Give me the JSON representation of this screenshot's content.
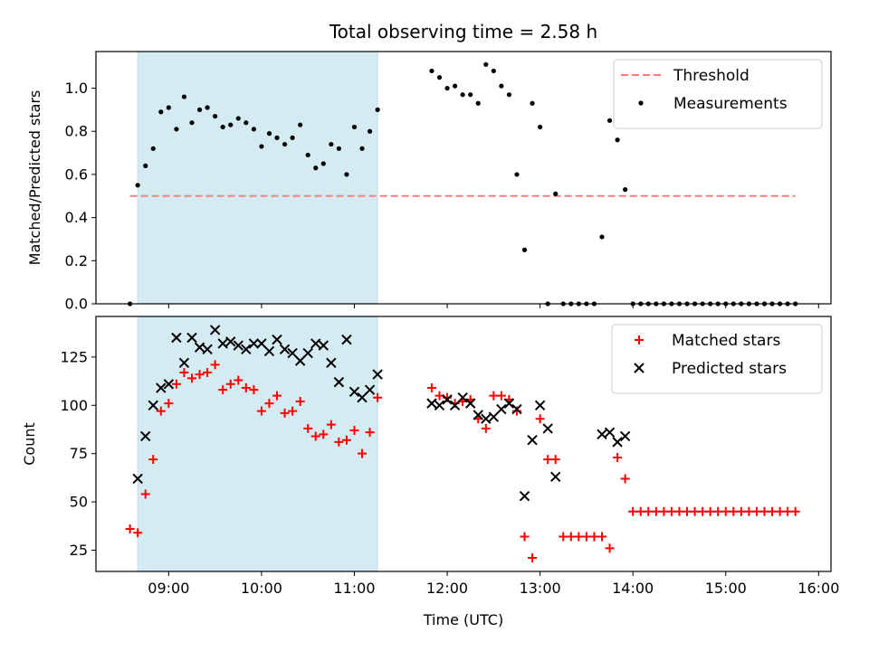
{
  "chart_data": {
    "type": "scatter",
    "title": "Total observing time = 2.58 h",
    "xlabel": "Time (UTC)",
    "x_ticks": [
      "09:00",
      "10:00",
      "11:00",
      "12:00",
      "13:00",
      "14:00",
      "15:00",
      "16:00"
    ],
    "highlight_span": [
      "08:40",
      "11:15"
    ],
    "highlight_color": "#d4ebf1",
    "panels": [
      {
        "id": "top",
        "ylabel": "Matched/Predicted stars",
        "ylim": [
          0,
          1.17
        ],
        "y_ticks": [
          0.0,
          0.2,
          0.4,
          0.6,
          0.8,
          1.0
        ],
        "y_tick_labels": [
          "0.0",
          "0.2",
          "0.4",
          "0.6",
          "0.8",
          "1.0"
        ],
        "legend_position": "top-right",
        "threshold": {
          "name": "Threshold",
          "value": 0.5,
          "x_range": [
            "08:35",
            "15:45"
          ],
          "color": "#f77f7f"
        },
        "series": [
          {
            "name": "Measurements",
            "marker": "dot",
            "color": "#000000",
            "points": [
              [
                "08:35",
                0.0
              ],
              [
                "08:40",
                0.55
              ],
              [
                "08:45",
                0.64
              ],
              [
                "08:50",
                0.72
              ],
              [
                "08:55",
                0.89
              ],
              [
                "09:00",
                0.91
              ],
              [
                "09:05",
                0.81
              ],
              [
                "09:10",
                0.96
              ],
              [
                "09:15",
                0.84
              ],
              [
                "09:20",
                0.9
              ],
              [
                "09:25",
                0.91
              ],
              [
                "09:30",
                0.87
              ],
              [
                "09:35",
                0.82
              ],
              [
                "09:40",
                0.83
              ],
              [
                "09:45",
                0.86
              ],
              [
                "09:50",
                0.84
              ],
              [
                "09:55",
                0.81
              ],
              [
                "10:00",
                0.73
              ],
              [
                "10:05",
                0.79
              ],
              [
                "10:10",
                0.77
              ],
              [
                "10:15",
                0.74
              ],
              [
                "10:20",
                0.77
              ],
              [
                "10:25",
                0.83
              ],
              [
                "10:30",
                0.69
              ],
              [
                "10:35",
                0.63
              ],
              [
                "10:40",
                0.65
              ],
              [
                "10:45",
                0.74
              ],
              [
                "10:50",
                0.72
              ],
              [
                "10:55",
                0.6
              ],
              [
                "11:00",
                0.82
              ],
              [
                "11:05",
                0.72
              ],
              [
                "11:10",
                0.8
              ],
              [
                "11:15",
                0.9
              ],
              [
                "11:50",
                1.08
              ],
              [
                "11:55",
                1.05
              ],
              [
                "12:00",
                1.0
              ],
              [
                "12:05",
                1.01
              ],
              [
                "12:10",
                0.97
              ],
              [
                "12:15",
                0.97
              ],
              [
                "12:20",
                0.93
              ],
              [
                "12:25",
                1.11
              ],
              [
                "12:30",
                1.08
              ],
              [
                "12:35",
                1.01
              ],
              [
                "12:40",
                0.97
              ],
              [
                "12:45",
                0.6
              ],
              [
                "12:50",
                0.25
              ],
              [
                "12:55",
                0.93
              ],
              [
                "13:00",
                0.82
              ],
              [
                "13:05",
                0.0
              ],
              [
                "13:10",
                0.51
              ],
              [
                "13:15",
                0.0
              ],
              [
                "13:20",
                0.0
              ],
              [
                "13:25",
                0.0
              ],
              [
                "13:30",
                0.0
              ],
              [
                "13:35",
                0.0
              ],
              [
                "13:40",
                0.31
              ],
              [
                "13:45",
                0.85
              ],
              [
                "13:50",
                0.76
              ],
              [
                "13:55",
                0.53
              ],
              [
                "14:00",
                0.0
              ],
              [
                "14:05",
                0.0
              ],
              [
                "14:10",
                0.0
              ],
              [
                "14:15",
                0.0
              ],
              [
                "14:20",
                0.0
              ],
              [
                "14:25",
                0.0
              ],
              [
                "14:30",
                0.0
              ],
              [
                "14:35",
                0.0
              ],
              [
                "14:40",
                0.0
              ],
              [
                "14:45",
                0.0
              ],
              [
                "14:50",
                0.0
              ],
              [
                "14:55",
                0.0
              ],
              [
                "15:00",
                0.0
              ],
              [
                "15:05",
                0.0
              ],
              [
                "15:10",
                0.0
              ],
              [
                "15:15",
                0.0
              ],
              [
                "15:20",
                0.0
              ],
              [
                "15:25",
                0.0
              ],
              [
                "15:30",
                0.0
              ],
              [
                "15:35",
                0.0
              ],
              [
                "15:40",
                0.0
              ],
              [
                "15:45",
                0.0
              ]
            ]
          }
        ]
      },
      {
        "id": "bottom",
        "ylabel": "Count",
        "ylim": [
          14,
          146
        ],
        "y_ticks": [
          25,
          50,
          75,
          100,
          125
        ],
        "y_tick_labels": [
          "25",
          "50",
          "75",
          "100",
          "125"
        ],
        "legend_position": "top-right",
        "series": [
          {
            "name": "Matched stars",
            "marker": "plus",
            "color": "#ff0000",
            "points": [
              [
                "08:35",
                36
              ],
              [
                "08:40",
                34
              ],
              [
                "08:45",
                54
              ],
              [
                "08:50",
                72
              ],
              [
                "08:55",
                97
              ],
              [
                "09:00",
                101
              ],
              [
                "09:05",
                111
              ],
              [
                "09:10",
                117
              ],
              [
                "09:15",
                114
              ],
              [
                "09:20",
                116
              ],
              [
                "09:25",
                117
              ],
              [
                "09:30",
                121
              ],
              [
                "09:35",
                108
              ],
              [
                "09:40",
                111
              ],
              [
                "09:45",
                113
              ],
              [
                "09:50",
                109
              ],
              [
                "09:55",
                108
              ],
              [
                "10:00",
                97
              ],
              [
                "10:05",
                101
              ],
              [
                "10:10",
                105
              ],
              [
                "10:15",
                96
              ],
              [
                "10:20",
                97
              ],
              [
                "10:25",
                102
              ],
              [
                "10:30",
                88
              ],
              [
                "10:35",
                84
              ],
              [
                "10:40",
                85
              ],
              [
                "10:45",
                90
              ],
              [
                "10:50",
                81
              ],
              [
                "10:55",
                82
              ],
              [
                "11:00",
                87
              ],
              [
                "11:05",
                75
              ],
              [
                "11:10",
                86
              ],
              [
                "11:15",
                104
              ],
              [
                "11:50",
                109
              ],
              [
                "11:55",
                105
              ],
              [
                "12:00",
                104
              ],
              [
                "12:05",
                101
              ],
              [
                "12:10",
                102
              ],
              [
                "12:15",
                103
              ],
              [
                "12:20",
                93
              ],
              [
                "12:25",
                88
              ],
              [
                "12:30",
                105
              ],
              [
                "12:35",
                105
              ],
              [
                "12:40",
                103
              ],
              [
                "12:45",
                97
              ],
              [
                "12:50",
                32
              ],
              [
                "12:55",
                21
              ],
              [
                "13:00",
                93
              ],
              [
                "13:05",
                72
              ],
              [
                "13:10",
                72
              ],
              [
                "13:15",
                32
              ],
              [
                "13:20",
                32
              ],
              [
                "13:25",
                32
              ],
              [
                "13:30",
                32
              ],
              [
                "13:35",
                32
              ],
              [
                "13:40",
                32
              ],
              [
                "13:45",
                26
              ],
              [
                "13:50",
                73
              ],
              [
                "13:55",
                62
              ],
              [
                "14:00",
                45
              ],
              [
                "14:05",
                45
              ],
              [
                "14:10",
                45
              ],
              [
                "14:15",
                45
              ],
              [
                "14:20",
                45
              ],
              [
                "14:25",
                45
              ],
              [
                "14:30",
                45
              ],
              [
                "14:35",
                45
              ],
              [
                "14:40",
                45
              ],
              [
                "14:45",
                45
              ],
              [
                "14:50",
                45
              ],
              [
                "14:55",
                45
              ],
              [
                "15:00",
                45
              ],
              [
                "15:05",
                45
              ],
              [
                "15:10",
                45
              ],
              [
                "15:15",
                45
              ],
              [
                "15:20",
                45
              ],
              [
                "15:25",
                45
              ],
              [
                "15:30",
                45
              ],
              [
                "15:35",
                45
              ],
              [
                "15:40",
                45
              ],
              [
                "15:45",
                45
              ]
            ]
          },
          {
            "name": "Predicted stars",
            "marker": "x",
            "color": "#000000",
            "points": [
              [
                "08:40",
                62
              ],
              [
                "08:45",
                84
              ],
              [
                "08:50",
                100
              ],
              [
                "08:55",
                109
              ],
              [
                "09:00",
                111
              ],
              [
                "09:05",
                135
              ],
              [
                "09:10",
                122
              ],
              [
                "09:15",
                135
              ],
              [
                "09:20",
                130
              ],
              [
                "09:25",
                129
              ],
              [
                "09:30",
                139
              ],
              [
                "09:35",
                132
              ],
              [
                "09:40",
                133
              ],
              [
                "09:45",
                131
              ],
              [
                "09:50",
                129
              ],
              [
                "09:55",
                132
              ],
              [
                "10:00",
                132
              ],
              [
                "10:05",
                128
              ],
              [
                "10:10",
                134
              ],
              [
                "10:15",
                129
              ],
              [
                "10:20",
                127
              ],
              [
                "10:25",
                123
              ],
              [
                "10:30",
                127
              ],
              [
                "10:35",
                132
              ],
              [
                "10:40",
                131
              ],
              [
                "10:45",
                122
              ],
              [
                "10:50",
                112
              ],
              [
                "10:55",
                134
              ],
              [
                "11:00",
                107
              ],
              [
                "11:05",
                104
              ],
              [
                "11:10",
                108
              ],
              [
                "11:15",
                116
              ],
              [
                "11:50",
                101
              ],
              [
                "11:55",
                100
              ],
              [
                "12:00",
                103
              ],
              [
                "12:05",
                100
              ],
              [
                "12:10",
                104
              ],
              [
                "12:15",
                101
              ],
              [
                "12:20",
                95
              ],
              [
                "12:25",
                93
              ],
              [
                "12:30",
                94
              ],
              [
                "12:35",
                98
              ],
              [
                "12:40",
                101
              ],
              [
                "12:45",
                98
              ],
              [
                "12:50",
                53
              ],
              [
                "12:55",
                82
              ],
              [
                "13:00",
                100
              ],
              [
                "13:05",
                88
              ],
              [
                "13:10",
                63
              ],
              [
                "13:40",
                85
              ],
              [
                "13:45",
                86
              ],
              [
                "13:50",
                81
              ],
              [
                "13:55",
                84
              ]
            ]
          }
        ]
      }
    ]
  }
}
